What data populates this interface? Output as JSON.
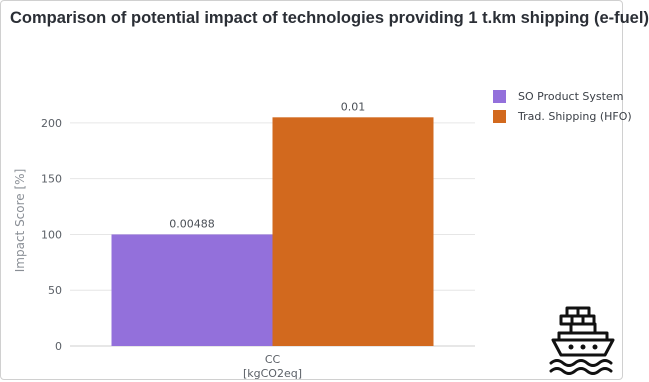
{
  "chart_title": "Comparison of potential impact of technologies providing 1 t.km shipping (e-fuel)",
  "legend": {
    "items": [
      {
        "label": "SO Product System",
        "color": "#9370db"
      },
      {
        "label": "Trad. Shipping (HFO)",
        "color": "#d2691e"
      }
    ]
  },
  "icon": "cargo-ship-icon",
  "chart_data": {
    "type": "bar",
    "title": "Comparison of potential impact of technologies providing 1 t.km shipping (e-fuel)",
    "categories": [
      "CC"
    ],
    "category_sublabels": [
      "[kgCO2eq]"
    ],
    "ylabel": "Impact Score [%]",
    "xlabel": "",
    "ylim": [
      0,
      225
    ],
    "yticks": [
      0,
      50,
      100,
      150,
      200
    ],
    "grid": true,
    "legend_position": "right",
    "series": [
      {
        "name": "SO Product System",
        "values": [
          100
        ],
        "data_labels": [
          "0.00488"
        ],
        "color": "#9370db"
      },
      {
        "name": "Trad. Shipping (HFO)",
        "values": [
          205
        ],
        "data_labels": [
          "0.01"
        ],
        "color": "#d2691e"
      }
    ]
  }
}
